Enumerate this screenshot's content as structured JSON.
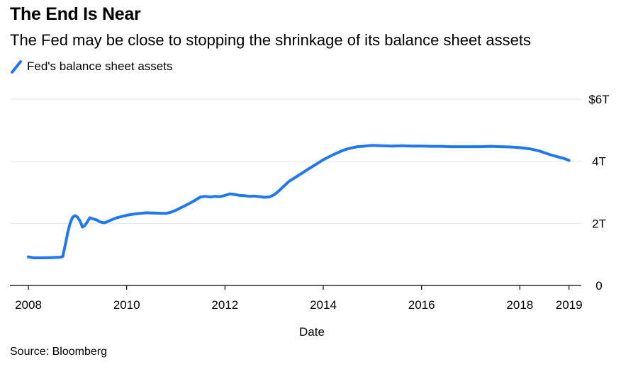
{
  "header": {
    "title": "The End Is Near",
    "subtitle": "The Fed may be close to stopping the shrinkage of its balance sheet assets"
  },
  "legend": {
    "label": "Fed's balance sheet assets"
  },
  "footer": {
    "source": "Source: Bloomberg"
  },
  "colors": {
    "series": "#1f78f2",
    "grid": "#e6e6e6",
    "axis": "#000000"
  },
  "chart_data": {
    "type": "line",
    "title": "The End Is Near",
    "subtitle": "The Fed may be close to stopping the shrinkage of its balance sheet assets",
    "xlabel": "Date",
    "ylabel": "",
    "xlim": [
      2008.0,
      2019.25
    ],
    "ylim": [
      0,
      6
    ],
    "x_ticks": [
      {
        "value": 2008,
        "label": "2008"
      },
      {
        "value": 2010,
        "label": "2010"
      },
      {
        "value": 2012,
        "label": "2012"
      },
      {
        "value": 2014,
        "label": "2014"
      },
      {
        "value": 2016,
        "label": "2016"
      },
      {
        "value": 2018,
        "label": "2018"
      },
      {
        "value": 2019,
        "label": "2019"
      }
    ],
    "y_ticks": [
      {
        "value": 0,
        "label": "0"
      },
      {
        "value": 2,
        "label": "2T"
      },
      {
        "value": 4,
        "label": "4T"
      },
      {
        "value": 6,
        "label": "$6T"
      }
    ],
    "grid": true,
    "series": [
      {
        "name": "Fed's balance sheet assets",
        "unit": "trillions USD",
        "x": [
          2008.0,
          2008.1,
          2008.3,
          2008.5,
          2008.65,
          2008.7,
          2008.75,
          2008.8,
          2008.85,
          2008.9,
          2008.95,
          2009.0,
          2009.05,
          2009.1,
          2009.15,
          2009.2,
          2009.25,
          2009.3,
          2009.35,
          2009.4,
          2009.45,
          2009.5,
          2009.55,
          2009.6,
          2009.7,
          2009.8,
          2009.9,
          2010.0,
          2010.2,
          2010.4,
          2010.6,
          2010.8,
          2010.9,
          2011.0,
          2011.1,
          2011.2,
          2011.3,
          2011.4,
          2011.5,
          2011.6,
          2011.7,
          2011.8,
          2011.9,
          2012.0,
          2012.1,
          2012.2,
          2012.3,
          2012.4,
          2012.5,
          2012.6,
          2012.7,
          2012.8,
          2012.9,
          2013.0,
          2013.1,
          2013.2,
          2013.3,
          2013.4,
          2013.5,
          2013.6,
          2013.7,
          2013.8,
          2013.9,
          2014.0,
          2014.1,
          2014.2,
          2014.3,
          2014.4,
          2014.5,
          2014.6,
          2014.7,
          2014.8,
          2014.9,
          2015.0,
          2015.2,
          2015.4,
          2015.6,
          2015.8,
          2016.0,
          2016.2,
          2016.4,
          2016.6,
          2016.8,
          2017.0,
          2017.2,
          2017.4,
          2017.6,
          2017.8,
          2018.0,
          2018.2,
          2018.4,
          2018.6,
          2018.8,
          2018.9,
          2019.0
        ],
        "y": [
          0.92,
          0.89,
          0.89,
          0.9,
          0.91,
          0.93,
          1.3,
          1.7,
          2.0,
          2.2,
          2.25,
          2.2,
          2.08,
          1.88,
          1.93,
          2.05,
          2.18,
          2.15,
          2.13,
          2.1,
          2.05,
          2.03,
          2.02,
          2.05,
          2.12,
          2.18,
          2.22,
          2.26,
          2.31,
          2.34,
          2.33,
          2.32,
          2.36,
          2.42,
          2.5,
          2.58,
          2.66,
          2.75,
          2.85,
          2.87,
          2.85,
          2.87,
          2.86,
          2.9,
          2.95,
          2.93,
          2.9,
          2.89,
          2.87,
          2.88,
          2.86,
          2.84,
          2.85,
          2.92,
          3.05,
          3.2,
          3.35,
          3.45,
          3.55,
          3.65,
          3.75,
          3.85,
          3.95,
          4.05,
          4.13,
          4.21,
          4.28,
          4.35,
          4.4,
          4.44,
          4.47,
          4.48,
          4.5,
          4.51,
          4.5,
          4.49,
          4.5,
          4.49,
          4.49,
          4.48,
          4.48,
          4.47,
          4.47,
          4.47,
          4.47,
          4.48,
          4.47,
          4.46,
          4.44,
          4.4,
          4.33,
          4.22,
          4.13,
          4.09,
          4.03
        ]
      }
    ]
  }
}
